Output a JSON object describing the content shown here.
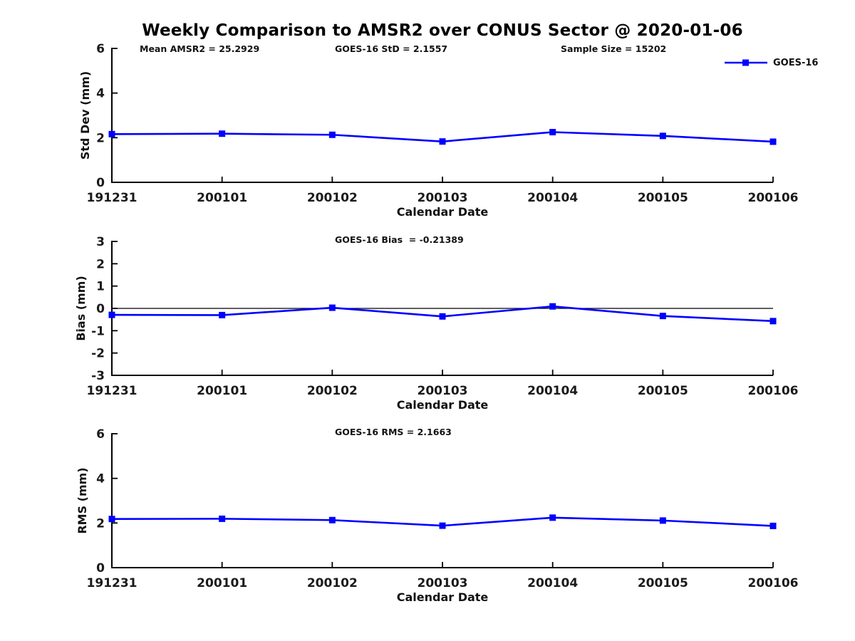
{
  "title": "Weekly Comparison to AMSR2 over CONUS Sector @ 2020-01-06",
  "legend": {
    "label": "GOES-16"
  },
  "style": {
    "line_color": "#0000FF",
    "axis_color": "#000000",
    "zero_line_color": "#000000",
    "text_color": "#111111",
    "background": "#FFFFFF"
  },
  "chart_data": [
    {
      "id": "std-dev",
      "type": "line",
      "ylabel": "Std Dev (mm)",
      "xlabel": "Calendar Date",
      "categories": [
        "191231",
        "200101",
        "200102",
        "200103",
        "200104",
        "200105",
        "200106"
      ],
      "series": [
        {
          "name": "GOES-16",
          "marker": "square",
          "values": [
            2.16,
            2.18,
            2.13,
            1.83,
            2.25,
            2.08,
            1.82
          ]
        }
      ],
      "ylim": [
        0,
        6
      ],
      "yticks": [
        0,
        2,
        4,
        6
      ],
      "grid": false,
      "legend_position": "top-right",
      "annotations": [
        {
          "id": "mean-amsr2",
          "text": "Mean AMSR2 = 25.2929"
        },
        {
          "id": "goes16-std",
          "text": "GOES-16 StD = 2.1557"
        },
        {
          "id": "sample-size",
          "text": "Sample Size = 15202"
        }
      ]
    },
    {
      "id": "bias",
      "type": "line",
      "ylabel": "Bias (mm)",
      "xlabel": "Calendar Date",
      "categories": [
        "191231",
        "200101",
        "200102",
        "200103",
        "200104",
        "200105",
        "200106"
      ],
      "series": [
        {
          "name": "GOES-16",
          "marker": "square",
          "values": [
            -0.29,
            -0.3,
            0.03,
            -0.36,
            0.09,
            -0.34,
            -0.57
          ]
        }
      ],
      "ylim": [
        -3,
        3
      ],
      "yticks": [
        -3,
        -2,
        -1,
        0,
        1,
        2,
        3
      ],
      "grid": false,
      "zero_line": true,
      "annotations": [
        {
          "id": "goes16-bias",
          "text": "GOES-16 Bias  = -0.21389"
        }
      ]
    },
    {
      "id": "rms",
      "type": "line",
      "ylabel": "RMS (mm)",
      "xlabel": "Calendar Date",
      "categories": [
        "191231",
        "200101",
        "200102",
        "200103",
        "200104",
        "200105",
        "200106"
      ],
      "series": [
        {
          "name": "GOES-16",
          "marker": "square",
          "values": [
            2.18,
            2.19,
            2.13,
            1.88,
            2.24,
            2.11,
            1.87
          ]
        }
      ],
      "ylim": [
        0,
        6
      ],
      "yticks": [
        0,
        2,
        4,
        6
      ],
      "grid": false,
      "annotations": [
        {
          "id": "goes16-rms",
          "text": "GOES-16 RMS = 2.1663"
        }
      ]
    }
  ]
}
